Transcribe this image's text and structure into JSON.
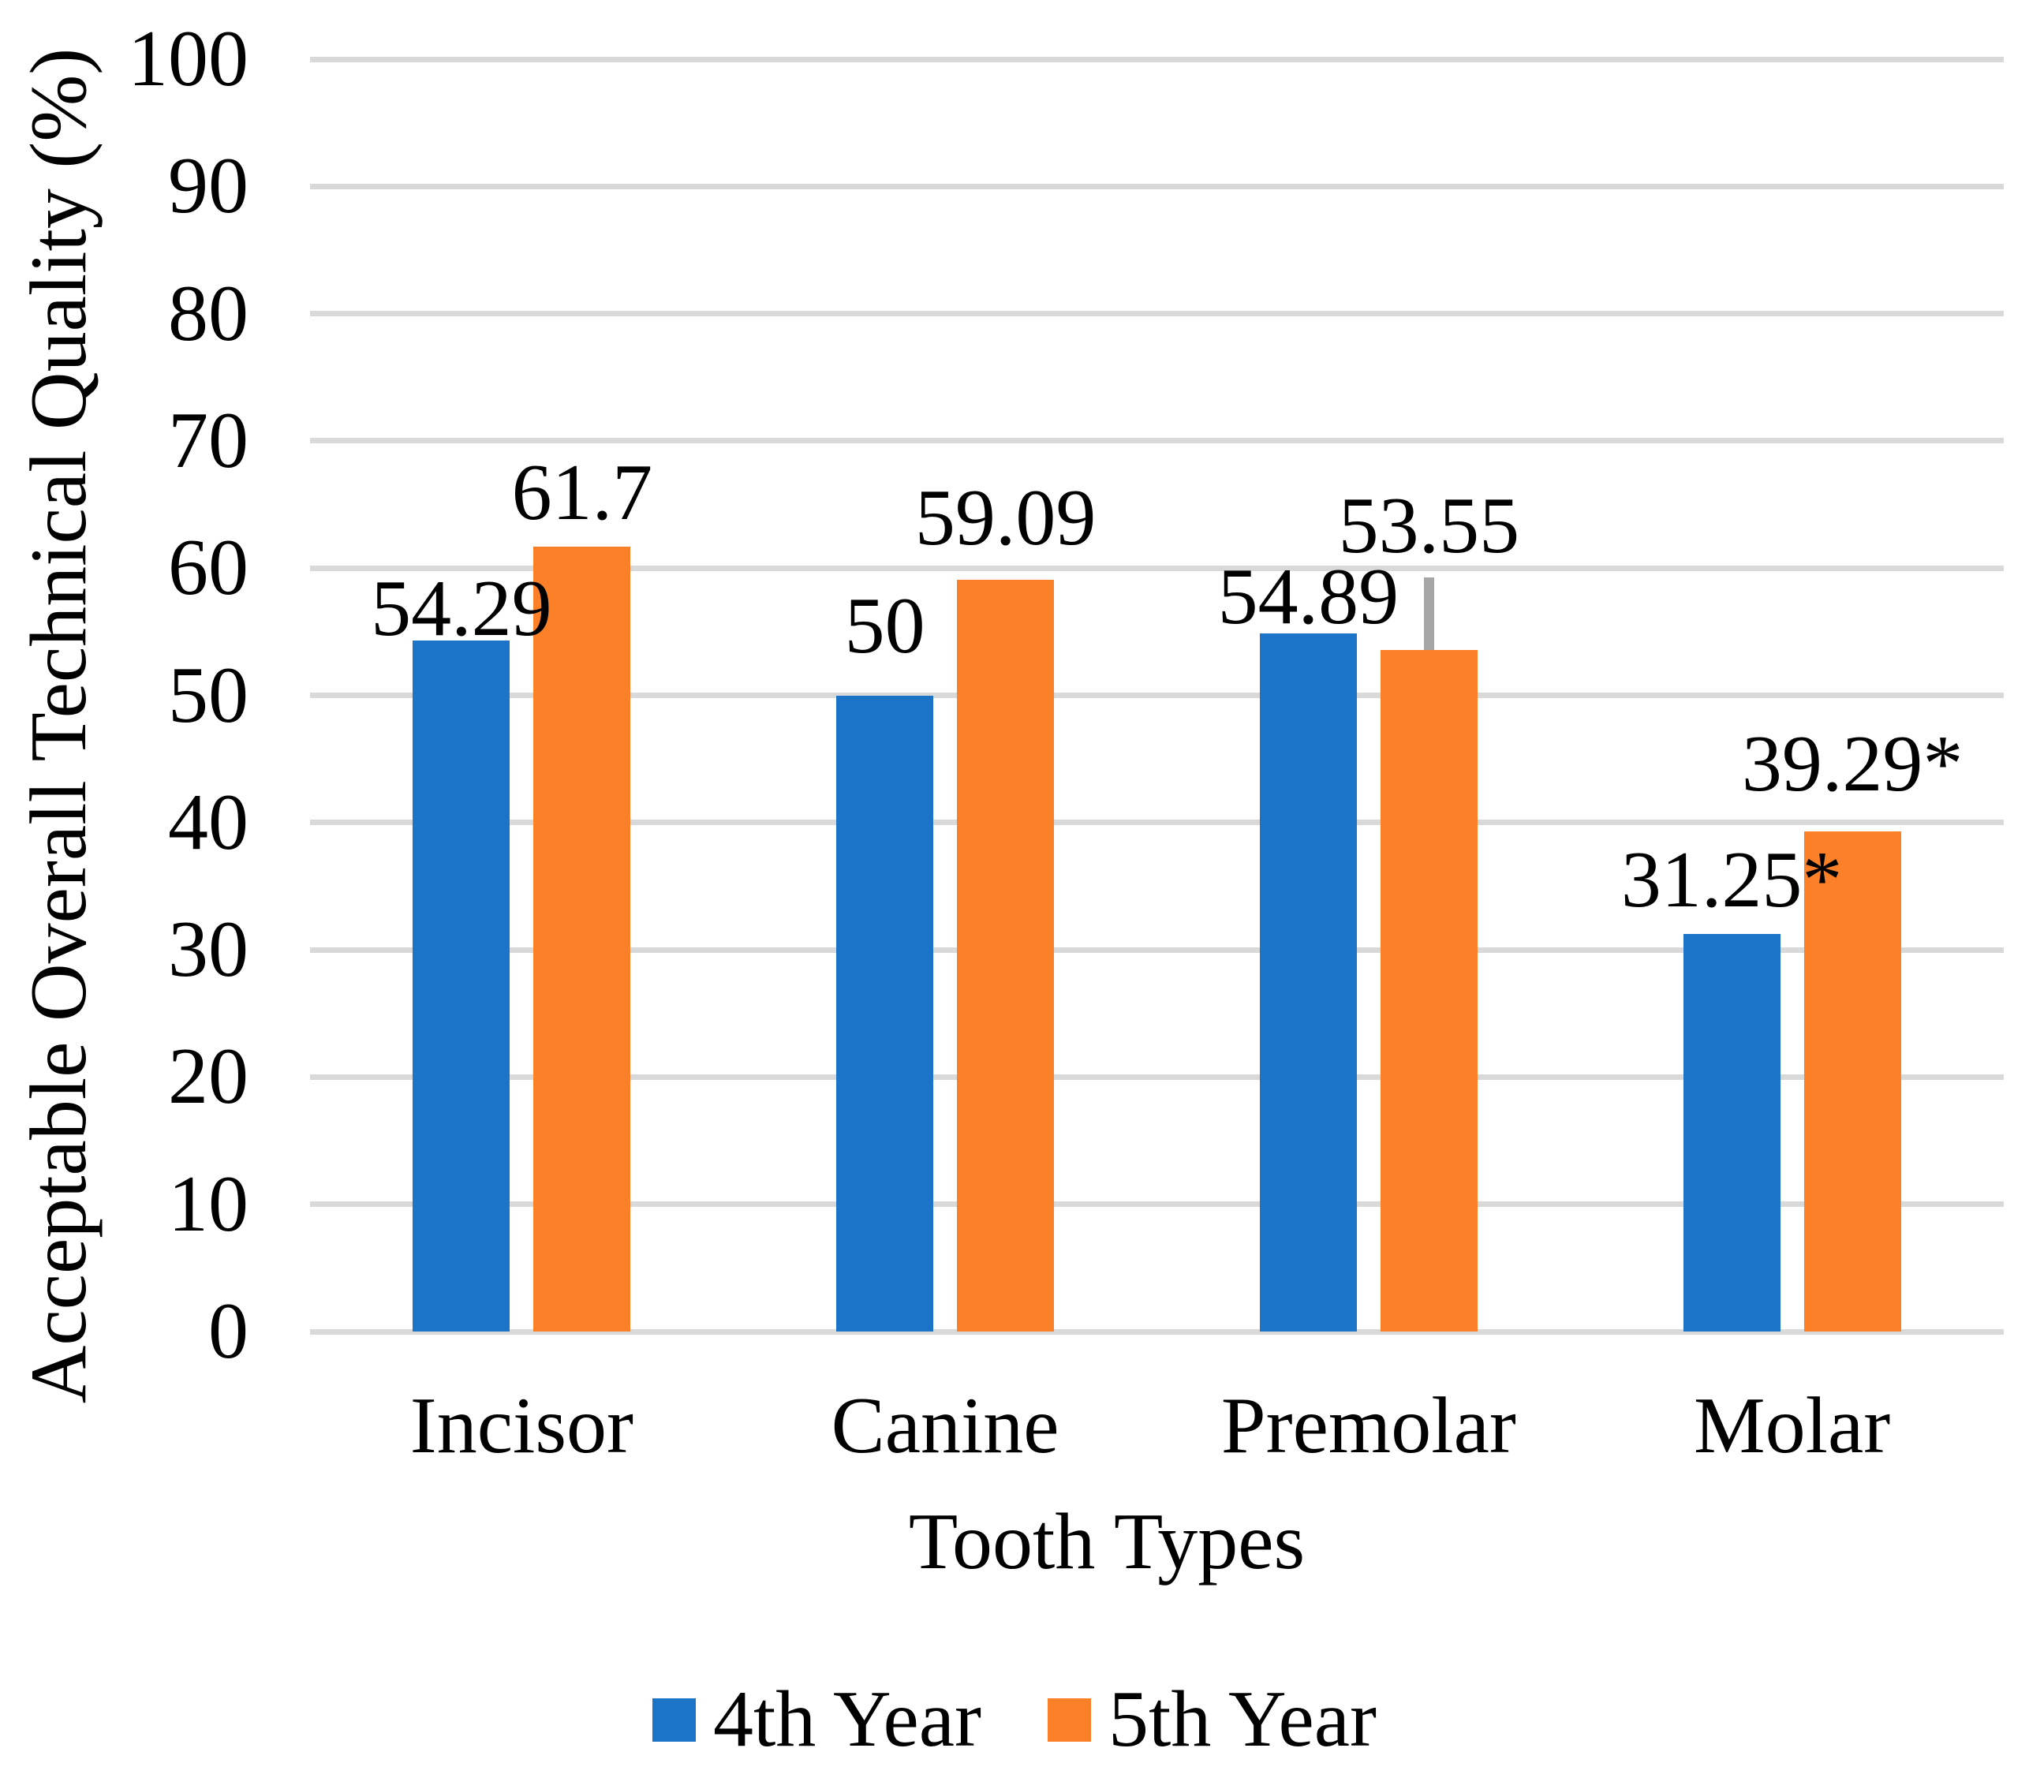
{
  "chart_data": {
    "type": "bar",
    "title": "",
    "categories": [
      "Incisor",
      "Canine",
      "Premolar",
      "Molar"
    ],
    "series": [
      {
        "name": "4th Year",
        "color": "#1b74c8",
        "values": [
          54.29,
          50,
          54.89,
          31.25
        ],
        "data_labels": [
          "54.29",
          "50",
          "54.89",
          "31.25*"
        ]
      },
      {
        "name": "5th Year",
        "color": "#fc8028",
        "values": [
          61.7,
          59.09,
          53.55,
          39.29
        ],
        "data_labels": [
          "61.7",
          "59.09",
          "53.55",
          "39.29*"
        ]
      }
    ],
    "error_bars": [
      {
        "category_index": 2,
        "series_index": 1,
        "plus": 5.72,
        "color": "#a6a6a6"
      }
    ],
    "xlabel": "Tooth Types",
    "ylabel": "Acceptable Overall Technical Quality (%)",
    "ylim": [
      0,
      100
    ],
    "yticks": [
      0,
      10,
      20,
      30,
      40,
      50,
      60,
      70,
      80,
      90,
      100
    ],
    "grid": true,
    "gridline_color": "#d9d9d9",
    "legend_position": "bottom"
  }
}
